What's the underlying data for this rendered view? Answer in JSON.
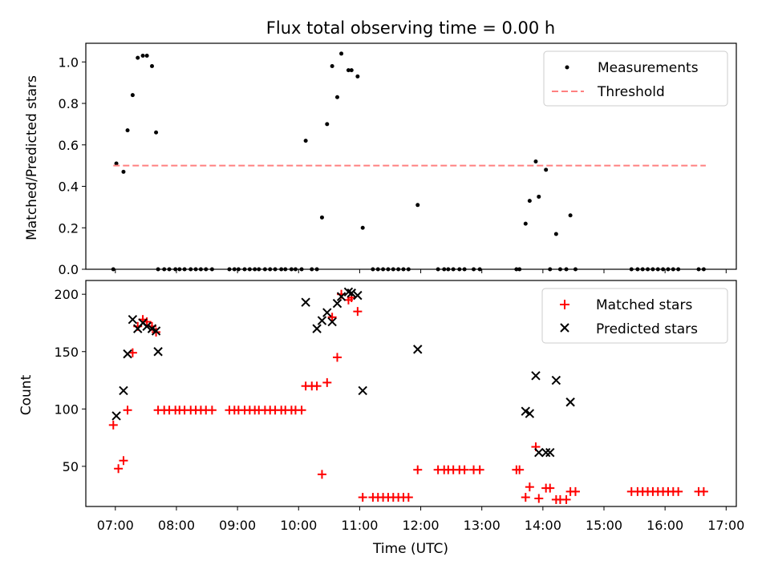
{
  "figure": {
    "title": "Flux total observing time = 0.00 h",
    "xlabel": "Time (UTC)"
  },
  "chart_data": [
    {
      "type": "scatter",
      "ylabel": "Matched/Predicted stars",
      "xlim": [
        "06:31",
        "17:10"
      ],
      "ylim": [
        0,
        1.09
      ],
      "yticks": [
        0.0,
        0.2,
        0.4,
        0.6,
        0.8,
        1.0
      ],
      "ytick_labels": [
        "0.0",
        "0.2",
        "0.4",
        "0.6",
        "0.8",
        "1.0"
      ],
      "legend_position": "top-right",
      "series": [
        {
          "name": "Measurements",
          "kind": "points",
          "color": "#000000",
          "x": [
            "06:58",
            "07:01",
            "07:08",
            "07:12",
            "07:17",
            "07:22",
            "07:27",
            "07:31",
            "07:36",
            "07:40",
            "07:42",
            "07:48",
            "07:53",
            "07:59",
            "08:03",
            "08:08",
            "08:14",
            "08:19",
            "08:24",
            "08:29",
            "08:35",
            "08:52",
            "08:57",
            "09:01",
            "09:07",
            "09:12",
            "09:17",
            "09:21",
            "09:27",
            "09:32",
            "09:37",
            "09:43",
            "09:47",
            "09:53",
            "09:57",
            "10:03",
            "10:07",
            "10:13",
            "10:18",
            "10:23",
            "10:28",
            "10:33",
            "10:38",
            "10:42",
            "10:49",
            "10:52",
            "10:58",
            "11:03",
            "11:13",
            "11:18",
            "11:23",
            "11:28",
            "11:33",
            "11:38",
            "11:43",
            "11:48",
            "11:57",
            "12:17",
            "12:23",
            "12:27",
            "12:32",
            "12:38",
            "12:43",
            "12:52",
            "12:58",
            "13:34",
            "13:37",
            "13:43",
            "13:47",
            "13:53",
            "13:56",
            "14:03",
            "14:07",
            "14:13",
            "14:17",
            "14:23",
            "14:27",
            "14:32",
            "15:27",
            "15:33",
            "15:38",
            "15:43",
            "15:48",
            "15:53",
            "15:58",
            "16:03",
            "16:08",
            "16:13",
            "16:33",
            "16:38"
          ],
          "y": [
            0,
            0.51,
            0.47,
            0.67,
            0.84,
            1.02,
            1.03,
            1.03,
            0.98,
            0.66,
            0,
            0,
            0,
            0,
            0,
            0,
            0,
            0,
            0,
            0,
            0,
            0,
            0,
            0,
            0,
            0,
            0,
            0,
            0,
            0,
            0,
            0,
            0,
            0,
            0,
            0,
            0.62,
            0,
            0,
            0.25,
            0.7,
            0.98,
            0.83,
            1.04,
            0.96,
            0.96,
            0.93,
            0.2,
            0,
            0,
            0,
            0,
            0,
            0,
            0,
            0,
            0.31,
            0,
            0,
            0,
            0,
            0,
            0,
            0,
            0,
            0,
            0,
            0.22,
            0.33,
            0.52,
            0.35,
            0.48,
            0,
            0.17,
            0,
            0,
            0.26,
            0,
            0,
            0,
            0,
            0,
            0,
            0,
            0,
            0,
            0,
            0,
            0,
            0
          ]
        },
        {
          "name": "Threshold",
          "kind": "dashed-line",
          "color": "#ff8080",
          "x": [
            "06:58",
            "16:40"
          ],
          "y": [
            0.5,
            0.5
          ]
        }
      ]
    },
    {
      "type": "scatter",
      "ylabel": "Count",
      "xlim": [
        "06:31",
        "17:10"
      ],
      "ylim": [
        15,
        212
      ],
      "yticks": [
        50,
        100,
        150,
        200
      ],
      "ytick_labels": [
        "50",
        "100",
        "150",
        "200"
      ],
      "xticks": [
        "07:00",
        "08:00",
        "09:00",
        "10:00",
        "11:00",
        "12:00",
        "13:00",
        "14:00",
        "15:00",
        "16:00",
        "17:00"
      ],
      "legend_position": "top-right",
      "series": [
        {
          "name": "Matched stars",
          "kind": "plus",
          "color": "#ff0000",
          "x": [
            "06:58",
            "07:03",
            "07:08",
            "07:12",
            "07:17",
            "07:22",
            "07:27",
            "07:31",
            "07:36",
            "07:40",
            "07:42",
            "07:48",
            "07:53",
            "07:59",
            "08:03",
            "08:08",
            "08:14",
            "08:19",
            "08:24",
            "08:29",
            "08:35",
            "08:52",
            "08:57",
            "09:01",
            "09:07",
            "09:12",
            "09:17",
            "09:21",
            "09:27",
            "09:32",
            "09:37",
            "09:43",
            "09:47",
            "09:53",
            "09:57",
            "10:03",
            "10:07",
            "10:13",
            "10:18",
            "10:23",
            "10:28",
            "10:33",
            "10:38",
            "10:42",
            "10:49",
            "10:52",
            "10:58",
            "11:03",
            "11:13",
            "11:18",
            "11:23",
            "11:28",
            "11:33",
            "11:38",
            "11:43",
            "11:48",
            "11:57",
            "12:17",
            "12:23",
            "12:27",
            "12:32",
            "12:38",
            "12:43",
            "12:52",
            "12:58",
            "13:34",
            "13:37",
            "13:43",
            "13:47",
            "13:53",
            "13:56",
            "14:03",
            "14:07",
            "14:13",
            "14:17",
            "14:23",
            "14:27",
            "14:32",
            "15:27",
            "15:33",
            "15:38",
            "15:43",
            "15:48",
            "15:53",
            "15:58",
            "16:03",
            "16:08",
            "16:13",
            "16:33",
            "16:38"
          ],
          "y": [
            86,
            48,
            55,
            99,
            149,
            172,
            178,
            176,
            172,
            167,
            99,
            99,
            99,
            99,
            99,
            99,
            99,
            99,
            99,
            99,
            99,
            99,
            99,
            99,
            99,
            99,
            99,
            99,
            99,
            99,
            99,
            99,
            99,
            99,
            99,
            99,
            120,
            120,
            120,
            43,
            123,
            180,
            145,
            200,
            195,
            197,
            185,
            23,
            23,
            23,
            23,
            23,
            23,
            23,
            23,
            23,
            47,
            47,
            47,
            47,
            47,
            47,
            47,
            47,
            47,
            47,
            47,
            23,
            32,
            67,
            22,
            31,
            31,
            21,
            21,
            21,
            28,
            28,
            28,
            28,
            28,
            28,
            28,
            28,
            28,
            28,
            28,
            28,
            28,
            28
          ]
        },
        {
          "name": "Predicted stars",
          "kind": "x",
          "color": "#000000",
          "x": [
            "07:01",
            "07:08",
            "07:12",
            "07:17",
            "07:22",
            "07:27",
            "07:31",
            "07:36",
            "07:40",
            "07:42",
            "10:07",
            "10:18",
            "10:23",
            "10:28",
            "10:33",
            "10:38",
            "10:42",
            "10:49",
            "10:52",
            "10:58",
            "11:03",
            "11:57",
            "13:43",
            "13:47",
            "13:53",
            "13:56",
            "14:03",
            "14:07",
            "14:13",
            "14:27"
          ],
          "y": [
            94,
            116,
            148,
            178,
            170,
            175,
            172,
            170,
            168,
            150,
            193,
            170,
            177,
            184,
            176,
            192,
            198,
            202,
            201,
            199,
            116,
            152,
            98,
            96,
            129,
            62,
            62,
            62,
            125,
            106
          ]
        }
      ]
    }
  ]
}
